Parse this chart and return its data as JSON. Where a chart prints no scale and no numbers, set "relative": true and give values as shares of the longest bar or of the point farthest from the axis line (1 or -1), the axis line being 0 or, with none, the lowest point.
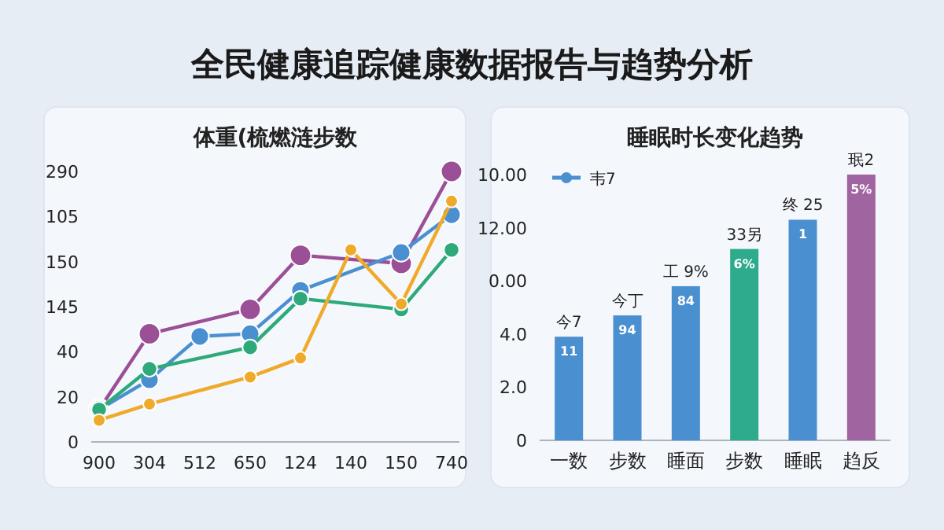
{
  "chart_data": [
    {
      "type": "line",
      "title": "全民健康追踪健康数据报告与趋势分析",
      "subtitle": "体重(梳燃涟步数",
      "relative": true,
      "categories": [
        "900",
        "304",
        "512",
        "650",
        "124",
        "140",
        "150",
        "740"
      ],
      "marker": "circle",
      "line_style": "solid",
      "series": [
        {
          "color": "#9b4f96",
          "values": [
            0.12,
            0.4,
            null,
            0.49,
            0.69,
            null,
            0.66,
            1
          ]
        },
        {
          "color": "#4a8fd0",
          "values": [
            0.12,
            0.23,
            0.39,
            0.4,
            0.56,
            null,
            0.7,
            0.84
          ]
        },
        {
          "color": "#2eaa7a",
          "values": [
            0.12,
            0.27,
            null,
            0.35,
            0.53,
            null,
            0.49,
            0.71
          ]
        },
        {
          "color": "#f0aa2a",
          "values": [
            0.08,
            0.14,
            null,
            0.24,
            0.31,
            0.71,
            0.51,
            0.89
          ]
        }
      ],
      "annotations": [
        "290",
        "105",
        "150",
        "145",
        "40",
        "20",
        "0"
      ]
    },
    {
      "type": "bar",
      "title": "睡眠时长变化趋势",
      "relative": true,
      "categories": [
        "一数",
        "步数",
        "睡面",
        "步数",
        "睡眠",
        "趋反"
      ],
      "legend": "top left",
      "series": [
        {
          "name": "韦7",
          "color": "#4a8fd0",
          "colors": [
            "#4a8fd0",
            "#4a8fd0",
            "#4a8fd0",
            "#2eaa8c",
            "#4a8fd0",
            "#a064a0"
          ],
          "values": [
            0.39,
            0.47,
            0.58,
            0.72,
            0.83,
            1
          ]
        }
      ],
      "annotations": [
        "今7",
        "今丁",
        "工 9%",
        "33另",
        "终 25",
        "珉2",
        "11",
        "94",
        "84",
        "6%",
        "1",
        "5%",
        "10.00",
        "12.00",
        "0.00",
        "4.0",
        "2.0",
        "0"
      ]
    }
  ]
}
